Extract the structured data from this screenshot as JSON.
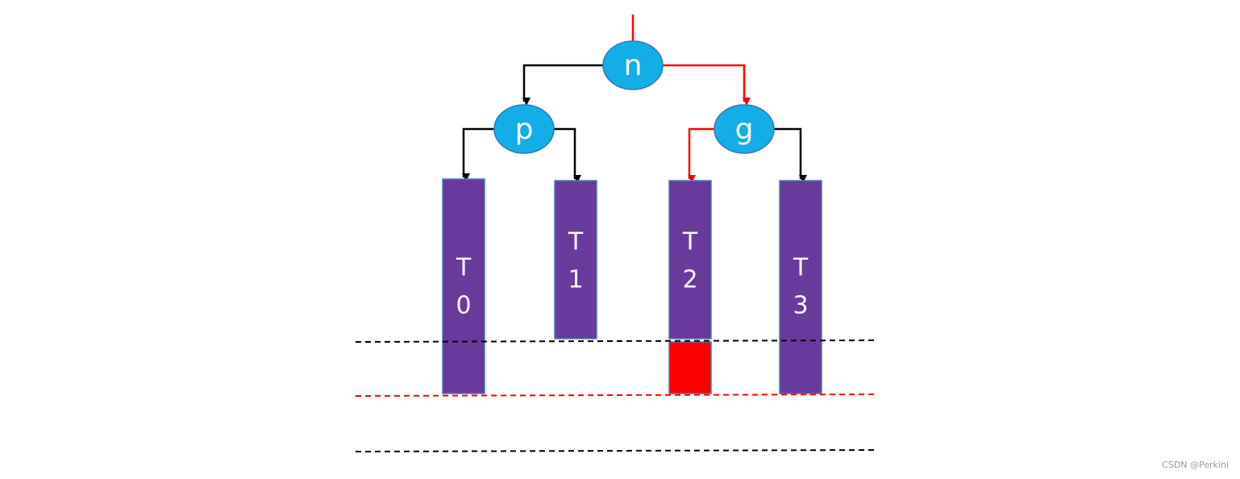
{
  "nodes": [
    {
      "label": "n"
    },
    {
      "label": "p"
    },
    {
      "label": "g"
    }
  ],
  "subtrees": [
    {
      "lines": [
        "T",
        "0"
      ]
    },
    {
      "lines": [
        "T",
        "1"
      ]
    },
    {
      "lines": [
        "T",
        "2"
      ]
    },
    {
      "lines": [
        "T",
        "3"
      ]
    }
  ],
  "footer": "CSDN @Perkinl"
}
